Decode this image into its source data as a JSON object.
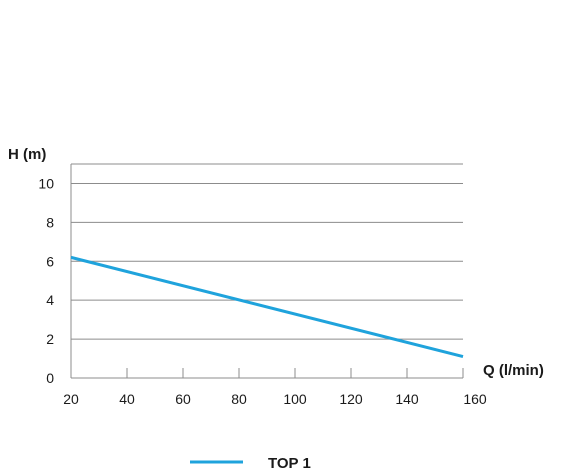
{
  "chart_data": {
    "type": "line",
    "title": "",
    "xlabel": "Q (l/min)",
    "ylabel": "H (m)",
    "xlim": [
      20,
      160
    ],
    "ylim": [
      0,
      11
    ],
    "x_ticks": [
      20,
      40,
      60,
      80,
      100,
      120,
      140,
      160
    ],
    "y_ticks": [
      0,
      2,
      4,
      6,
      8,
      10
    ],
    "grid": "horizontal",
    "legend_position": "bottom-center",
    "series": [
      {
        "name": "TOP 1",
        "color": "#1fa3dc",
        "x": [
          20,
          160
        ],
        "y": [
          6.2,
          1.1
        ]
      }
    ]
  }
}
